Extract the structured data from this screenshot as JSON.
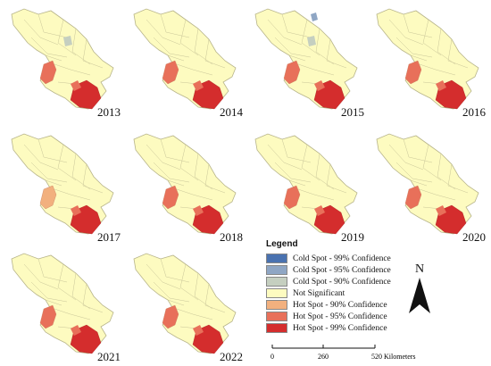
{
  "panels": [
    {
      "year": "2013"
    },
    {
      "year": "2014"
    },
    {
      "year": "2015"
    },
    {
      "year": "2016"
    },
    {
      "year": "2017"
    },
    {
      "year": "2018"
    },
    {
      "year": "2019"
    },
    {
      "year": "2020"
    },
    {
      "year": "2021"
    },
    {
      "year": "2022"
    }
  ],
  "legend": {
    "title": "Legend",
    "items": [
      {
        "label": "Cold Spot - 99% Confidence",
        "color": "#4a72b0"
      },
      {
        "label": "Cold Spot - 95% Confidence",
        "color": "#8fa6c4"
      },
      {
        "label": "Cold Spot - 90% Confidence",
        "color": "#c5cfc0"
      },
      {
        "label": "Not Significant",
        "color": "#fdfbc0"
      },
      {
        "label": "Hot Spot - 90% Confidence",
        "color": "#f2b07e"
      },
      {
        "label": "Hot Spot - 95% Confidence",
        "color": "#e8705a"
      },
      {
        "label": "Hot Spot - 99% Confidence",
        "color": "#d42d2d"
      }
    ]
  },
  "scale": {
    "tick0": "0",
    "tick1": "260",
    "tick2": "520 Kilometers"
  },
  "north": {
    "label": "N"
  }
}
